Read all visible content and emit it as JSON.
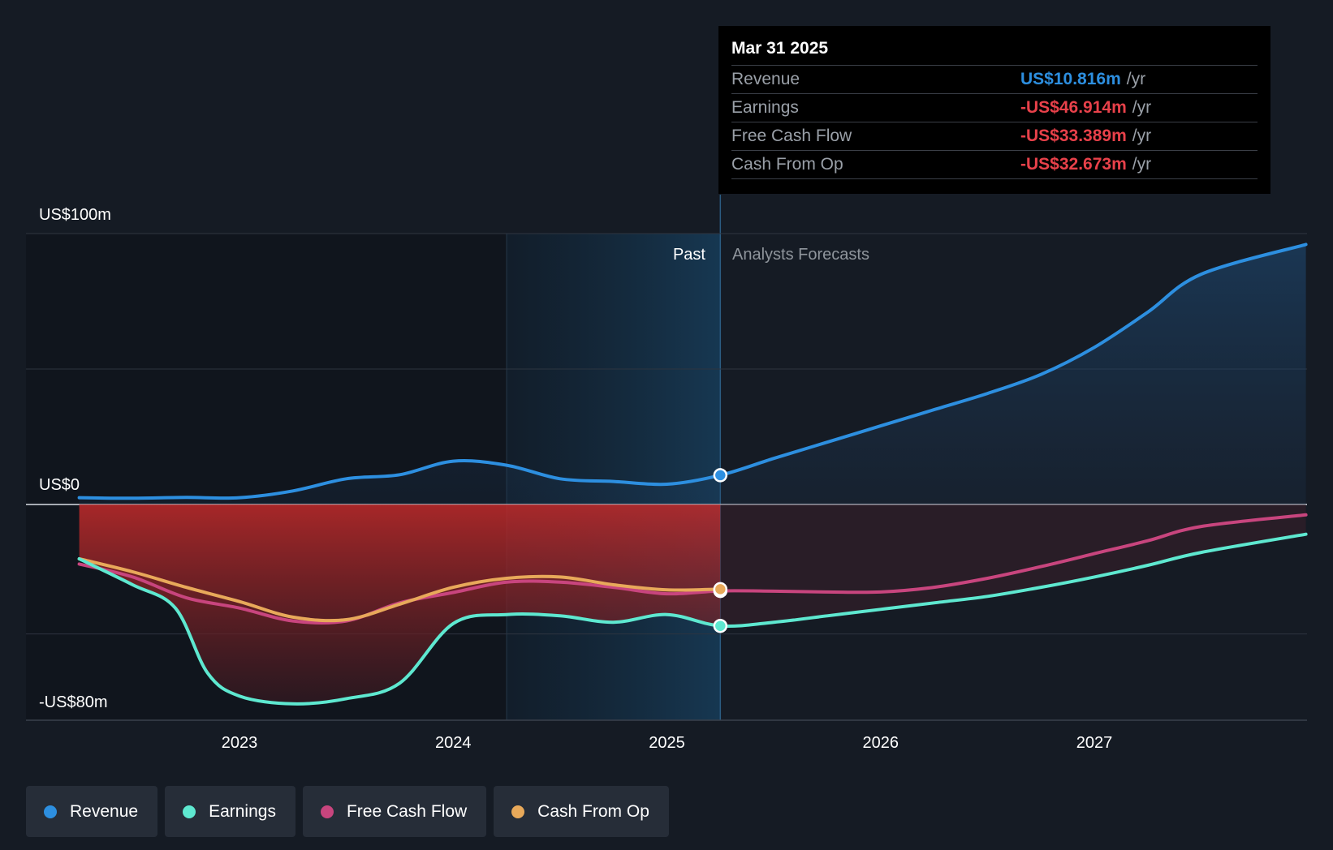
{
  "chart_data": {
    "type": "line",
    "title": "",
    "x_axis": {
      "ticks": [
        "2023",
        "2024",
        "2025",
        "2026",
        "2027"
      ],
      "range": [
        2022.25,
        2027.99
      ]
    },
    "y_axis": {
      "labels": [
        "US$100m",
        "US$0",
        "-US$80m"
      ],
      "range": [
        -80,
        100
      ]
    },
    "zones": {
      "past_label": "Past",
      "forecast_label": "Analysts Forecasts",
      "divider_x": 2025.25,
      "shade_start_x": 2024.25
    },
    "series": [
      {
        "name": "Revenue",
        "color": "#2d8fe0",
        "area": true,
        "marker_x": 2025.25,
        "marker_y": 10.8,
        "points": [
          [
            2022.25,
            2.5
          ],
          [
            2022.5,
            2.3
          ],
          [
            2022.75,
            2.6
          ],
          [
            2023.0,
            2.5
          ],
          [
            2023.25,
            5.0
          ],
          [
            2023.5,
            9.5
          ],
          [
            2023.75,
            11.0
          ],
          [
            2024.0,
            16.0
          ],
          [
            2024.25,
            14.5
          ],
          [
            2024.5,
            9.5
          ],
          [
            2024.75,
            8.5
          ],
          [
            2025.0,
            7.5
          ],
          [
            2025.25,
            10.8
          ],
          [
            2025.5,
            17.0
          ],
          [
            2025.75,
            23.0
          ],
          [
            2026.0,
            29.0
          ],
          [
            2026.25,
            35.0
          ],
          [
            2026.5,
            41.0
          ],
          [
            2026.75,
            48.0
          ],
          [
            2027.0,
            58.0
          ],
          [
            2027.25,
            71.0
          ],
          [
            2027.5,
            85.0
          ],
          [
            2027.99,
            96.0
          ]
        ]
      },
      {
        "name": "Earnings",
        "color": "#5ee8d0",
        "marker_x": 2025.25,
        "marker_y": -46.9,
        "points": [
          [
            2022.25,
            -21.0
          ],
          [
            2022.5,
            -31.0
          ],
          [
            2022.7,
            -40.0
          ],
          [
            2022.85,
            -65.0
          ],
          [
            2023.0,
            -74.0
          ],
          [
            2023.25,
            -77.0
          ],
          [
            2023.5,
            -75.0
          ],
          [
            2023.75,
            -69.0
          ],
          [
            2024.0,
            -46.0
          ],
          [
            2024.25,
            -42.5
          ],
          [
            2024.5,
            -43.0
          ],
          [
            2024.75,
            -45.5
          ],
          [
            2025.0,
            -42.5
          ],
          [
            2025.25,
            -46.9
          ],
          [
            2025.5,
            -45.5
          ],
          [
            2025.75,
            -43.0
          ],
          [
            2026.0,
            -40.5
          ],
          [
            2026.25,
            -38.0
          ],
          [
            2026.5,
            -35.5
          ],
          [
            2026.75,
            -32.0
          ],
          [
            2027.0,
            -28.0
          ],
          [
            2027.25,
            -23.5
          ],
          [
            2027.5,
            -18.5
          ],
          [
            2027.99,
            -11.5
          ]
        ]
      },
      {
        "name": "Free Cash Flow",
        "color": "#c8457e",
        "marker_x": 2025.25,
        "marker_y": -33.4,
        "points": [
          [
            2022.25,
            -23.0
          ],
          [
            2022.5,
            -28.0
          ],
          [
            2022.75,
            -36.0
          ],
          [
            2023.0,
            -40.0
          ],
          [
            2023.25,
            -45.0
          ],
          [
            2023.5,
            -45.0
          ],
          [
            2023.75,
            -38.0
          ],
          [
            2024.0,
            -34.0
          ],
          [
            2024.25,
            -30.0
          ],
          [
            2024.5,
            -30.0
          ],
          [
            2024.75,
            -32.0
          ],
          [
            2025.0,
            -34.5
          ],
          [
            2025.25,
            -33.4
          ],
          [
            2025.5,
            -33.5
          ],
          [
            2025.75,
            -33.8
          ],
          [
            2026.0,
            -33.8
          ],
          [
            2026.25,
            -32.0
          ],
          [
            2026.5,
            -28.5
          ],
          [
            2026.75,
            -24.0
          ],
          [
            2027.0,
            -19.0
          ],
          [
            2027.25,
            -14.0
          ],
          [
            2027.5,
            -8.5
          ],
          [
            2027.99,
            -4.0
          ]
        ]
      },
      {
        "name": "Cash From Op",
        "color": "#e8a95a",
        "marker_x": 2025.25,
        "marker_y": -32.7,
        "points": [
          [
            2022.25,
            -21.0
          ],
          [
            2022.5,
            -26.0
          ],
          [
            2022.75,
            -32.0
          ],
          [
            2023.0,
            -37.5
          ],
          [
            2023.25,
            -43.5
          ],
          [
            2023.5,
            -44.5
          ],
          [
            2023.75,
            -38.5
          ],
          [
            2024.0,
            -32.0
          ],
          [
            2024.25,
            -28.5
          ],
          [
            2024.5,
            -28.0
          ],
          [
            2024.75,
            -31.0
          ],
          [
            2025.0,
            -33.0
          ],
          [
            2025.25,
            -32.7
          ]
        ]
      }
    ]
  },
  "tooltip": {
    "date": "Mar 31 2025",
    "unit": "/yr",
    "rows": [
      {
        "label": "Revenue",
        "value": "US$10.816m",
        "color": "#2d8fe0"
      },
      {
        "label": "Earnings",
        "value": "-US$46.914m",
        "color": "#e8414a"
      },
      {
        "label": "Free Cash Flow",
        "value": "-US$33.389m",
        "color": "#e8414a"
      },
      {
        "label": "Cash From Op",
        "value": "-US$32.673m",
        "color": "#e8414a"
      }
    ]
  },
  "legend": [
    {
      "label": "Revenue",
      "color": "#2d8fe0"
    },
    {
      "label": "Earnings",
      "color": "#5ee8d0"
    },
    {
      "label": "Free Cash Flow",
      "color": "#c8457e"
    },
    {
      "label": "Cash From Op",
      "color": "#e8a95a"
    }
  ]
}
